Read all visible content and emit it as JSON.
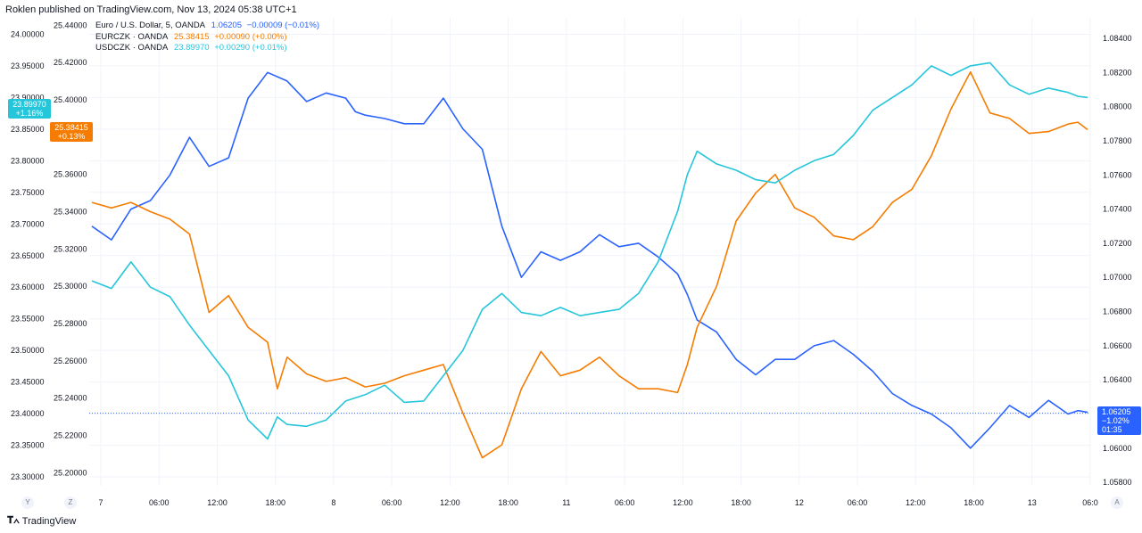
{
  "header": {
    "published": "Roklen published on TradingView.com, Nov 13, 2024 05:38 UTC+1"
  },
  "legend": [
    {
      "name": "Euro / U.S. Dollar, 5, OANDA",
      "value": "1.06205",
      "change": "−0.00009 (−0.01%)",
      "color": "#2962ff"
    },
    {
      "name": "EURCZK · OANDA",
      "value": "25.38415",
      "change": "+0.00090 (+0.00%)",
      "color": "#f57c00"
    },
    {
      "name": "USDCZK · OANDA",
      "value": "23.89970",
      "change": "+0.00290 (+0.01%)",
      "color": "#26c6da"
    }
  ],
  "badges": {
    "usdczk": {
      "value": "23.89970",
      "change": "+1.16%"
    },
    "eurczk": {
      "value": "25.38415",
      "change": "+0.13%"
    },
    "eurusd": {
      "value": "1.06205",
      "change": "−1.02%",
      "countdown": "01:35"
    }
  },
  "axis_letters": {
    "left1": "Y",
    "left2": "Z",
    "right": "A"
  },
  "footer": {
    "brand": "TradingView"
  },
  "chart_data": {
    "type": "line",
    "x_ticks": [
      "7",
      "06:00",
      "12:00",
      "18:00",
      "8",
      "06:00",
      "12:00",
      "18:00",
      "11",
      "06:00",
      "12:00",
      "18:00",
      "12",
      "06:00",
      "12:00",
      "18:00",
      "13",
      "06:0"
    ],
    "axes": {
      "usdczk_ticks": [
        "24.00000",
        "23.95000",
        "23.90000",
        "23.85000",
        "23.80000",
        "23.75000",
        "23.70000",
        "23.65000",
        "23.60000",
        "23.55000",
        "23.50000",
        "23.45000",
        "23.40000",
        "23.35000",
        "23.30000"
      ],
      "eurczk_ticks": [
        "25.44000",
        "25.42000",
        "25.40000",
        "25.38000",
        "25.36000",
        "25.34000",
        "25.32000",
        "25.30000",
        "25.28000",
        "25.26000",
        "25.24000",
        "25.22000",
        "25.20000"
      ],
      "eurusd_ticks": [
        "1.08400",
        "1.08200",
        "1.08000",
        "1.07800",
        "1.07600",
        "1.07400",
        "1.07200",
        "1.07000",
        "1.06800",
        "1.06600",
        "1.06400",
        "1.06200",
        "1.06000",
        "1.05800"
      ],
      "usdczk_range": [
        23.286,
        24.026
      ],
      "eurczk_range": [
        25.193,
        25.444
      ],
      "eurusd_range": [
        1.0578,
        1.0852
      ]
    },
    "series": [
      {
        "name": "EURUSD",
        "axis": "eurusd",
        "color": "#2962ff",
        "x": [
          0,
          2,
          4,
          6,
          8,
          10,
          12,
          14,
          16,
          18,
          20,
          22,
          24,
          26,
          27,
          28,
          30,
          32,
          34,
          36,
          38,
          40,
          42,
          44,
          46,
          48,
          50,
          52,
          54,
          56,
          58,
          60,
          61,
          62,
          64,
          66,
          68,
          70,
          72,
          74,
          76,
          78,
          80,
          82,
          84,
          86,
          88,
          90,
          92,
          94,
          96,
          98,
          100,
          101,
          102
        ],
        "y": [
          1.073,
          1.0722,
          1.074,
          1.0745,
          1.076,
          1.0782,
          1.0765,
          1.077,
          1.0805,
          1.082,
          1.0815,
          1.0803,
          1.0808,
          1.0805,
          1.0797,
          1.0795,
          1.0793,
          1.079,
          1.079,
          1.0805,
          1.0787,
          1.0775,
          1.073,
          1.07,
          1.0715,
          1.071,
          1.0715,
          1.0725,
          1.0718,
          1.072,
          1.0712,
          1.0702,
          1.069,
          1.0675,
          1.0668,
          1.0652,
          1.0643,
          1.0652,
          1.0652,
          1.066,
          1.0663,
          1.0655,
          1.0645,
          1.0632,
          1.0625,
          1.062,
          1.0612,
          1.06,
          1.0612,
          1.0625,
          1.0618,
          1.0628,
          1.062,
          1.0622,
          1.0621
        ]
      },
      {
        "name": "EURCZK",
        "axis": "eurczk",
        "color": "#f57c00",
        "x": [
          0,
          2,
          4,
          6,
          8,
          10,
          12,
          14,
          16,
          18,
          19,
          20,
          22,
          24,
          26,
          28,
          30,
          32,
          34,
          36,
          38,
          40,
          42,
          44,
          46,
          48,
          50,
          52,
          54,
          56,
          58,
          60,
          61,
          62,
          64,
          66,
          68,
          70,
          72,
          74,
          76,
          78,
          80,
          82,
          84,
          86,
          88,
          90,
          92,
          94,
          96,
          98,
          100,
          101,
          102
        ],
        "y": [
          25.345,
          25.342,
          25.345,
          25.34,
          25.336,
          25.328,
          25.286,
          25.295,
          25.278,
          25.27,
          25.245,
          25.262,
          25.253,
          25.249,
          25.251,
          25.246,
          25.248,
          25.252,
          25.255,
          25.258,
          25.232,
          25.208,
          25.215,
          25.245,
          25.265,
          25.252,
          25.255,
          25.262,
          25.252,
          25.245,
          25.245,
          25.243,
          25.258,
          25.278,
          25.3,
          25.335,
          25.35,
          25.36,
          25.342,
          25.337,
          25.327,
          25.325,
          25.332,
          25.345,
          25.352,
          25.37,
          25.395,
          25.415,
          25.393,
          25.39,
          25.382,
          25.383,
          25.387,
          25.388,
          25.384
        ]
      },
      {
        "name": "USDCZK",
        "axis": "usdczk",
        "color": "#26c6da",
        "x": [
          0,
          2,
          4,
          6,
          8,
          10,
          12,
          14,
          16,
          18,
          19,
          20,
          22,
          24,
          26,
          28,
          30,
          32,
          34,
          36,
          38,
          40,
          42,
          44,
          46,
          48,
          50,
          52,
          54,
          56,
          58,
          60,
          61,
          62,
          64,
          66,
          68,
          70,
          72,
          74,
          76,
          78,
          80,
          82,
          84,
          86,
          88,
          90,
          92,
          94,
          96,
          98,
          100,
          101,
          102
        ],
        "y": [
          23.61,
          23.598,
          23.64,
          23.6,
          23.585,
          23.54,
          23.5,
          23.46,
          23.39,
          23.36,
          23.395,
          23.383,
          23.38,
          23.39,
          23.42,
          23.43,
          23.445,
          23.418,
          23.42,
          23.46,
          23.5,
          23.565,
          23.59,
          23.56,
          23.555,
          23.568,
          23.555,
          23.56,
          23.565,
          23.59,
          23.64,
          23.72,
          23.778,
          23.815,
          23.795,
          23.785,
          23.77,
          23.765,
          23.785,
          23.8,
          23.81,
          23.84,
          23.88,
          23.9,
          23.92,
          23.95,
          23.935,
          23.95,
          23.955,
          23.92,
          23.905,
          23.915,
          23.908,
          23.902,
          23.9
        ]
      }
    ]
  }
}
